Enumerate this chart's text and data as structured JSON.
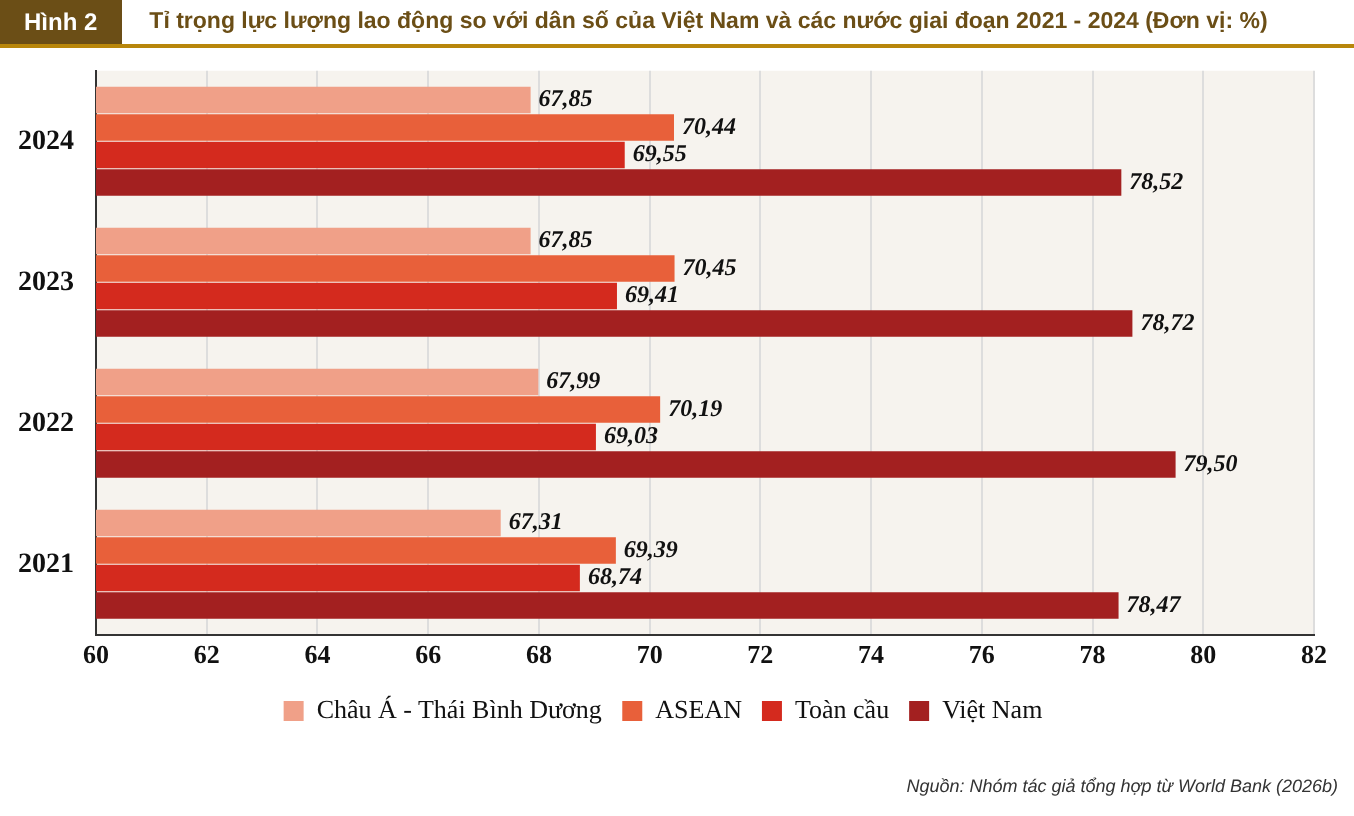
{
  "chart_data": {
    "type": "bar",
    "orientation": "horizontal",
    "title": "Hình 2",
    "subtitle": "Tỉ trọng lực lượng lao động so với dân số của Việt Nam và các nước giai đoạn 2021 - 2024 (Đơn vị: %)",
    "categories": [
      "2024",
      "2023",
      "2022",
      "2021"
    ],
    "series": [
      {
        "name": "Châu Á - Thái Bình Dương",
        "color": "#f0a088",
        "values": [
          67.85,
          67.85,
          67.99,
          67.31
        ],
        "value_labels": [
          "67,85",
          "67,85",
          "67,99",
          "67,31"
        ]
      },
      {
        "name": "ASEAN",
        "color": "#e8603a",
        "values": [
          70.44,
          70.45,
          70.19,
          69.39
        ],
        "value_labels": [
          "70,44",
          "70,45",
          "70,19",
          "69,39"
        ]
      },
      {
        "name": "Toàn cầu",
        "color": "#d42a1e",
        "values": [
          69.55,
          69.41,
          69.03,
          68.74
        ],
        "value_labels": [
          "69,55",
          "69,41",
          "69,03",
          "68,74"
        ]
      },
      {
        "name": "Việt Nam",
        "color": "#a32020",
        "values": [
          78.52,
          78.72,
          79.5,
          78.47
        ],
        "value_labels": [
          "78,52",
          "78,72",
          "79,50",
          "78,47"
        ]
      }
    ],
    "xlim": [
      60,
      82
    ],
    "xticks": [
      60,
      62,
      64,
      66,
      68,
      70,
      72,
      74,
      76,
      78,
      80,
      82
    ],
    "grid": "x",
    "legend": "bottom",
    "annotations": [
      "Nguồn: Nhóm tác giả tổng hợp từ World Bank (2026b)"
    ]
  }
}
